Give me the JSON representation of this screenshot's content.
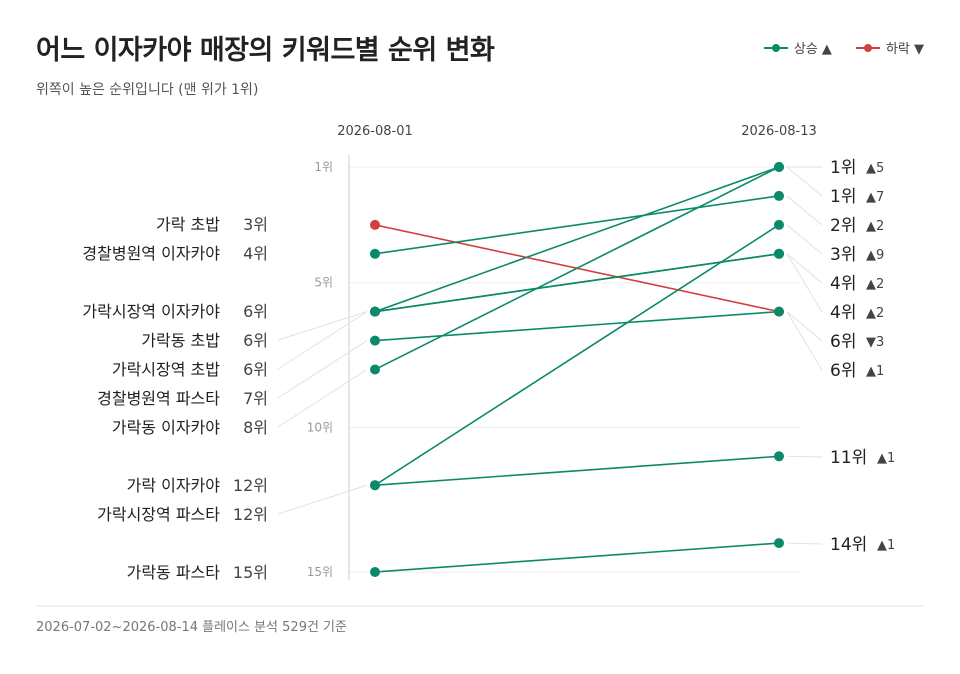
{
  "title": "어느 이자카야 매장의 키워드별 순위 변화",
  "subtitle": "위쪽이 높은 순위입니다 (맨 위가 1위)",
  "footer": "2026-07-02~2026-08-14 플레이스 분석 529건 기준",
  "legend": [
    {
      "label": "상승 ▲",
      "color": "#0b8a6a"
    },
    {
      "label": "하락 ▼",
      "color": "#d13f3f"
    }
  ],
  "colors": {
    "up": "#0b8a6a",
    "down": "#d13f3f",
    "axis": "#cccccc",
    "grid": "#eeeeee"
  },
  "chart_data": {
    "type": "slope",
    "x": [
      "2026-08-01",
      "2026-08-13"
    ],
    "y_axis": {
      "ticks": [
        1,
        5,
        10,
        15
      ],
      "tick_labels": [
        "1위",
        "5위",
        "10위",
        "15위"
      ],
      "range": [
        1,
        15
      ],
      "reversed": true
    },
    "series": [
      {
        "name": "가락 초밥",
        "start": 3,
        "end": 6,
        "start_label": "3위",
        "end_label": "6위",
        "change": "▼3",
        "direction": "down"
      },
      {
        "name": "경찰병원역 이자카야",
        "start": 4,
        "end": 2,
        "start_label": "4위",
        "end_label": "2위",
        "change": "▲2",
        "direction": "up"
      },
      {
        "name": "가락시장역 이자카야",
        "start": 6,
        "end": 1,
        "start_label": "6위",
        "end_label": "1위",
        "change": "▲5",
        "direction": "up"
      },
      {
        "name": "가락동 초밥",
        "start": 6,
        "end": 4,
        "start_label": "6위",
        "end_label": "4위",
        "change": "▲2",
        "direction": "up"
      },
      {
        "name": "가락시장역 초밥",
        "start": 6,
        "end": 4,
        "start_label": "6위",
        "end_label": "4위",
        "change": "▲2",
        "direction": "up"
      },
      {
        "name": "경찰병원역 파스타",
        "start": 7,
        "end": 6,
        "start_label": "7위",
        "end_label": "6위",
        "change": "▲1",
        "direction": "up"
      },
      {
        "name": "가락동 이자카야",
        "start": 8,
        "end": 1,
        "start_label": "8위",
        "end_label": "1위",
        "change": "▲7",
        "direction": "up"
      },
      {
        "name": "가락 이자카야",
        "start": 12,
        "end": 3,
        "start_label": "12위",
        "end_label": "3위",
        "change": "▲9",
        "direction": "up"
      },
      {
        "name": "가락시장역 파스타",
        "start": 12,
        "end": 11,
        "start_label": "12위",
        "end_label": "11위",
        "change": "▲1",
        "direction": "up"
      },
      {
        "name": "가락동 파스타",
        "start": 15,
        "end": 14,
        "start_label": "15위",
        "end_label": "14위",
        "change": "▲1",
        "direction": "up"
      }
    ]
  }
}
